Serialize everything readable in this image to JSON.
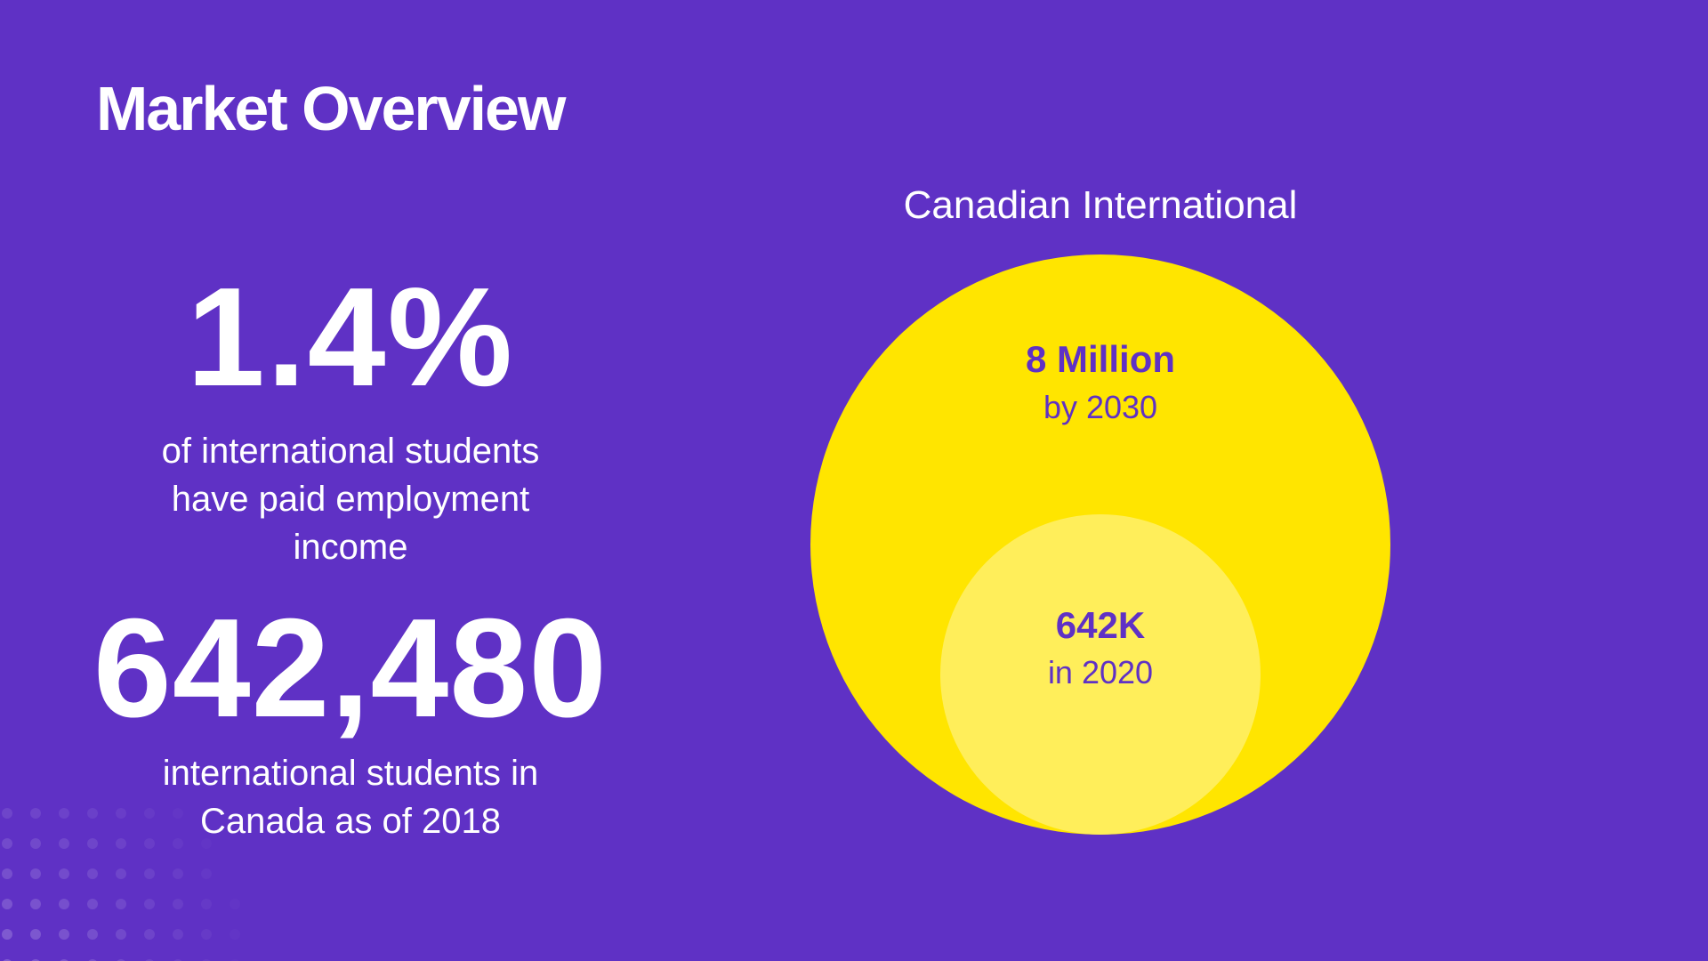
{
  "slide": {
    "title": "Market Overview"
  },
  "stats": [
    {
      "value": "1.4%",
      "description": "of international students have paid employment income"
    },
    {
      "value": "642,480",
      "description": "international students in Canada as of 2018"
    }
  ],
  "chart_data": {
    "type": "bubble",
    "title": "Canadian International",
    "series": [
      {
        "label": "8 Million",
        "sublabel": "by 2030",
        "value": 8000000,
        "color": "#ffe500"
      },
      {
        "label": "642K",
        "sublabel": "in 2020",
        "value": 642000,
        "color": "#ffee5a"
      }
    ],
    "label_color": "#5f31c5"
  },
  "colors": {
    "background": "#5f31c5",
    "text": "#ffffff",
    "accent": "#ffe500"
  }
}
